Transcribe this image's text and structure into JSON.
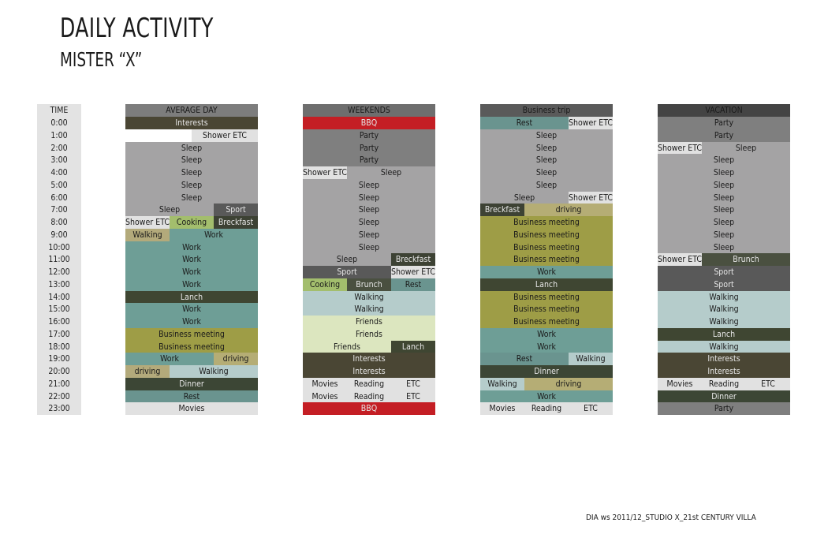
{
  "page": {
    "title": "DAILY ACTIVITY",
    "subtitle": "MISTER “X”",
    "footer": "DIA ws 2011/12_STUDIO X_21st CENTURY VILLA"
  },
  "colors": {
    "Interests": "#4a4634",
    "Shower ETC": "#e1e1e1",
    "Sleep": "#a4a3a4",
    "Sport": "#595959",
    "Cooking": "#a3be6d",
    "Breckfast": "#3d4234",
    "Walking_avg": "#b3aa7b",
    "Work": "#6e9e96",
    "Lanch": "#3f4632",
    "Business meeting": "#9e9d46",
    "driving": "#b5ad75",
    "Walking": "#b5cccb",
    "Dinner": "#3c4635",
    "Rest": "#6a948f",
    "Movies/Reading/ETC": "#e1e1e1",
    "BBQ": "#c41e24",
    "Party": "#7f7f7f",
    "Brunch": "#4a5040",
    "Friends": "#dce6bf",
    "header_avg": "#7d7d7d",
    "header_weekend": "#6e6e6e",
    "header_trip": "#5a5a5a",
    "header_vacation": "#444444",
    "time_bg": "#e3e3e3"
  },
  "time_header": "TIME",
  "hours": [
    "0:00",
    "1:00",
    "2:00",
    "3:00",
    "4:00",
    "5:00",
    "6:00",
    "7:00",
    "8:00",
    "9:00",
    "10:00",
    "11:00",
    "12:00",
    "13:00",
    "14:00",
    "15:00",
    "16:00",
    "17:00",
    "18:00",
    "19:00",
    "20:00",
    "21:00",
    "22:00",
    "23:00"
  ],
  "chart_data": {
    "type": "table",
    "title": "DAILY ACTIVITY",
    "subtitle": "MISTER “X”",
    "columns": [
      {
        "header": "AVERAGE DAY",
        "header_color": "#7d7d7d",
        "rows": [
          [
            {
              "label": "Interests",
              "color": "#4a4634",
              "light": true
            }
          ],
          [
            {
              "label": "",
              "color": "#ffffff"
            },
            {
              "label": "Shower ETC",
              "color": "#e1e1e1"
            }
          ],
          [
            {
              "label": "Sleep",
              "color": "#a4a3a4"
            }
          ],
          [
            {
              "label": "Sleep",
              "color": "#a4a3a4"
            }
          ],
          [
            {
              "label": "Sleep",
              "color": "#a4a3a4"
            }
          ],
          [
            {
              "label": "Sleep",
              "color": "#a4a3a4"
            }
          ],
          [
            {
              "label": "Sleep",
              "color": "#a4a3a4"
            }
          ],
          [
            {
              "label": "Sleep",
              "color": "#a4a3a4",
              "flex": 2
            },
            {
              "label": "Sport",
              "color": "#595959",
              "light": true
            }
          ],
          [
            {
              "label": "Shower ETC",
              "color": "#e1e1e1"
            },
            {
              "label": "Cooking",
              "color": "#a3be6d"
            },
            {
              "label": "Breckfast",
              "color": "#3d4234",
              "light": true
            }
          ],
          [
            {
              "label": "Walking",
              "color": "#b3aa7b"
            },
            {
              "label": "Work",
              "color": "#6e9e96",
              "flex": 2
            }
          ],
          [
            {
              "label": "Work",
              "color": "#6e9e96"
            }
          ],
          [
            {
              "label": "Work",
              "color": "#6e9e96"
            }
          ],
          [
            {
              "label": "Work",
              "color": "#6e9e96"
            }
          ],
          [
            {
              "label": "Work",
              "color": "#6e9e96"
            }
          ],
          [
            {
              "label": "Lanch",
              "color": "#3f4632",
              "light": true
            }
          ],
          [
            {
              "label": "Work",
              "color": "#6e9e96"
            }
          ],
          [
            {
              "label": "Work",
              "color": "#6e9e96"
            }
          ],
          [
            {
              "label": "Business meeting",
              "color": "#9e9d46"
            }
          ],
          [
            {
              "label": "Business meeting",
              "color": "#9e9d46"
            }
          ],
          [
            {
              "label": "Work",
              "color": "#6e9e96",
              "flex": 2
            },
            {
              "label": "driving",
              "color": "#b5ad75"
            }
          ],
          [
            {
              "label": "driving",
              "color": "#b3aa7b"
            },
            {
              "label": "Walking",
              "color": "#b5cccb",
              "flex": 2
            }
          ],
          [
            {
              "label": "Dinner",
              "color": "#3c4635",
              "light": true
            }
          ],
          [
            {
              "label": "Rest",
              "color": "#6a948f"
            }
          ],
          [
            {
              "label": "Movies",
              "color": "#e1e1e1"
            }
          ]
        ]
      },
      {
        "header": "WEEKENDS",
        "header_color": "#6e6e6e",
        "rows": [
          [
            {
              "label": "BBQ",
              "color": "#c41e24",
              "light": true
            }
          ],
          [
            {
              "label": "Party",
              "color": "#7f7f7f"
            }
          ],
          [
            {
              "label": "Party",
              "color": "#7f7f7f"
            }
          ],
          [
            {
              "label": "Party",
              "color": "#7f7f7f"
            }
          ],
          [
            {
              "label": "Shower ETC",
              "color": "#e1e1e1"
            },
            {
              "label": "Sleep",
              "color": "#a4a3a4",
              "flex": 2
            }
          ],
          [
            {
              "label": "Sleep",
              "color": "#a4a3a4"
            }
          ],
          [
            {
              "label": "Sleep",
              "color": "#a4a3a4"
            }
          ],
          [
            {
              "label": "Sleep",
              "color": "#a4a3a4"
            }
          ],
          [
            {
              "label": "Sleep",
              "color": "#a4a3a4"
            }
          ],
          [
            {
              "label": "Sleep",
              "color": "#a4a3a4"
            }
          ],
          [
            {
              "label": "Sleep",
              "color": "#a4a3a4"
            }
          ],
          [
            {
              "label": "Sleep",
              "color": "#a4a3a4",
              "flex": 2
            },
            {
              "label": "Breckfast",
              "color": "#3d4234",
              "light": true
            }
          ],
          [
            {
              "label": "Sport",
              "color": "#595959",
              "light": true,
              "flex": 2
            },
            {
              "label": "Shower ETC",
              "color": "#e1e1e1"
            }
          ],
          [
            {
              "label": "Cooking",
              "color": "#a3be6d"
            },
            {
              "label": "Brunch",
              "color": "#4a5040",
              "light": true
            },
            {
              "label": "Rest",
              "color": "#6a948f"
            }
          ],
          [
            {
              "label": "Walking",
              "color": "#b5cccb"
            }
          ],
          [
            {
              "label": "Walking",
              "color": "#b5cccb"
            }
          ],
          [
            {
              "label": "Friends",
              "color": "#dce6bf"
            }
          ],
          [
            {
              "label": "Friends",
              "color": "#dce6bf"
            }
          ],
          [
            {
              "label": "Friends",
              "color": "#dce6bf",
              "flex": 2
            },
            {
              "label": "Lanch",
              "color": "#3f4632",
              "light": true
            }
          ],
          [
            {
              "label": "Interests",
              "color": "#4a4634",
              "light": true
            }
          ],
          [
            {
              "label": "Interests",
              "color": "#4a4634",
              "light": true
            }
          ],
          [
            {
              "label": "Movies",
              "color": "#e1e1e1"
            },
            {
              "label": "Reading",
              "color": "#e1e1e1"
            },
            {
              "label": "ETC",
              "color": "#e1e1e1"
            }
          ],
          [
            {
              "label": "Movies",
              "color": "#e1e1e1"
            },
            {
              "label": "Reading",
              "color": "#e1e1e1"
            },
            {
              "label": "ETC",
              "color": "#e1e1e1"
            }
          ],
          [
            {
              "label": "BBQ",
              "color": "#c41e24",
              "light": true
            }
          ]
        ]
      },
      {
        "header": "Business trip",
        "header_color": "#5a5a5a",
        "rows": [
          [
            {
              "label": "Rest",
              "color": "#6a948f",
              "flex": 2
            },
            {
              "label": "Shower ETC",
              "color": "#e1e1e1"
            }
          ],
          [
            {
              "label": "Sleep",
              "color": "#a4a3a4"
            }
          ],
          [
            {
              "label": "Sleep",
              "color": "#a4a3a4"
            }
          ],
          [
            {
              "label": "Sleep",
              "color": "#a4a3a4"
            }
          ],
          [
            {
              "label": "Sleep",
              "color": "#a4a3a4"
            }
          ],
          [
            {
              "label": "Sleep",
              "color": "#a4a3a4"
            }
          ],
          [
            {
              "label": "Sleep",
              "color": "#a4a3a4",
              "flex": 2
            },
            {
              "label": "Shower ETC",
              "color": "#e1e1e1"
            }
          ],
          [
            {
              "label": "Breckfast",
              "color": "#3d4234",
              "light": true
            },
            {
              "label": "driving",
              "color": "#b5ad75",
              "flex": 2
            }
          ],
          [
            {
              "label": "Business meeting",
              "color": "#9e9d46"
            }
          ],
          [
            {
              "label": "Business meeting",
              "color": "#9e9d46"
            }
          ],
          [
            {
              "label": "Business meeting",
              "color": "#9e9d46"
            }
          ],
          [
            {
              "label": "Business meeting",
              "color": "#9e9d46"
            }
          ],
          [
            {
              "label": "Work",
              "color": "#6e9e96"
            }
          ],
          [
            {
              "label": "Lanch",
              "color": "#3f4632",
              "light": true
            }
          ],
          [
            {
              "label": "Business meeting",
              "color": "#9e9d46"
            }
          ],
          [
            {
              "label": "Business meeting",
              "color": "#9e9d46"
            }
          ],
          [
            {
              "label": "Business meeting",
              "color": "#9e9d46"
            }
          ],
          [
            {
              "label": "Work",
              "color": "#6e9e96"
            }
          ],
          [
            {
              "label": "Work",
              "color": "#6e9e96"
            }
          ],
          [
            {
              "label": "Rest",
              "color": "#6a948f",
              "flex": 2
            },
            {
              "label": "Walking",
              "color": "#b5cccb"
            }
          ],
          [
            {
              "label": "Dinner",
              "color": "#3c4635",
              "light": true
            }
          ],
          [
            {
              "label": "Walking",
              "color": "#b5cccb"
            },
            {
              "label": "driving",
              "color": "#b5ad75",
              "flex": 2
            }
          ],
          [
            {
              "label": "Work",
              "color": "#6e9e96"
            }
          ],
          [
            {
              "label": "Movies",
              "color": "#e1e1e1"
            },
            {
              "label": "Reading",
              "color": "#e1e1e1"
            },
            {
              "label": "ETC",
              "color": "#e1e1e1"
            }
          ]
        ]
      },
      {
        "header": "VACATION",
        "header_color": "#444444",
        "rows": [
          [
            {
              "label": "Party",
              "color": "#7f7f7f"
            }
          ],
          [
            {
              "label": "Party",
              "color": "#7f7f7f"
            }
          ],
          [
            {
              "label": "Shower ETC",
              "color": "#e1e1e1"
            },
            {
              "label": "Sleep",
              "color": "#a4a3a4",
              "flex": 2
            }
          ],
          [
            {
              "label": "Sleep",
              "color": "#a4a3a4"
            }
          ],
          [
            {
              "label": "Sleep",
              "color": "#a4a3a4"
            }
          ],
          [
            {
              "label": "Sleep",
              "color": "#a4a3a4"
            }
          ],
          [
            {
              "label": "Sleep",
              "color": "#a4a3a4"
            }
          ],
          [
            {
              "label": "Sleep",
              "color": "#a4a3a4"
            }
          ],
          [
            {
              "label": "Sleep",
              "color": "#a4a3a4"
            }
          ],
          [
            {
              "label": "Sleep",
              "color": "#a4a3a4"
            }
          ],
          [
            {
              "label": "Sleep",
              "color": "#a4a3a4"
            }
          ],
          [
            {
              "label": "Shower ETC",
              "color": "#e1e1e1"
            },
            {
              "label": "Brunch",
              "color": "#4a5040",
              "light": true,
              "flex": 2
            }
          ],
          [
            {
              "label": "Sport",
              "color": "#595959",
              "light": true
            }
          ],
          [
            {
              "label": "Sport",
              "color": "#595959",
              "light": true
            }
          ],
          [
            {
              "label": "Walking",
              "color": "#b5cccb"
            }
          ],
          [
            {
              "label": "Walking",
              "color": "#b5cccb"
            }
          ],
          [
            {
              "label": "Walking",
              "color": "#b5cccb"
            }
          ],
          [
            {
              "label": "Lanch",
              "color": "#3f4632",
              "light": true
            }
          ],
          [
            {
              "label": "Walking",
              "color": "#b5cccb"
            }
          ],
          [
            {
              "label": "Interests",
              "color": "#4a4634",
              "light": true
            }
          ],
          [
            {
              "label": "Interests",
              "color": "#4a4634",
              "light": true
            }
          ],
          [
            {
              "label": "Movies",
              "color": "#e1e1e1"
            },
            {
              "label": "Reading",
              "color": "#e1e1e1"
            },
            {
              "label": "ETC",
              "color": "#e1e1e1"
            }
          ],
          [
            {
              "label": "Dinner",
              "color": "#3c4635",
              "light": true
            }
          ],
          [
            {
              "label": "Party",
              "color": "#7f7f7f"
            }
          ]
        ]
      }
    ]
  }
}
